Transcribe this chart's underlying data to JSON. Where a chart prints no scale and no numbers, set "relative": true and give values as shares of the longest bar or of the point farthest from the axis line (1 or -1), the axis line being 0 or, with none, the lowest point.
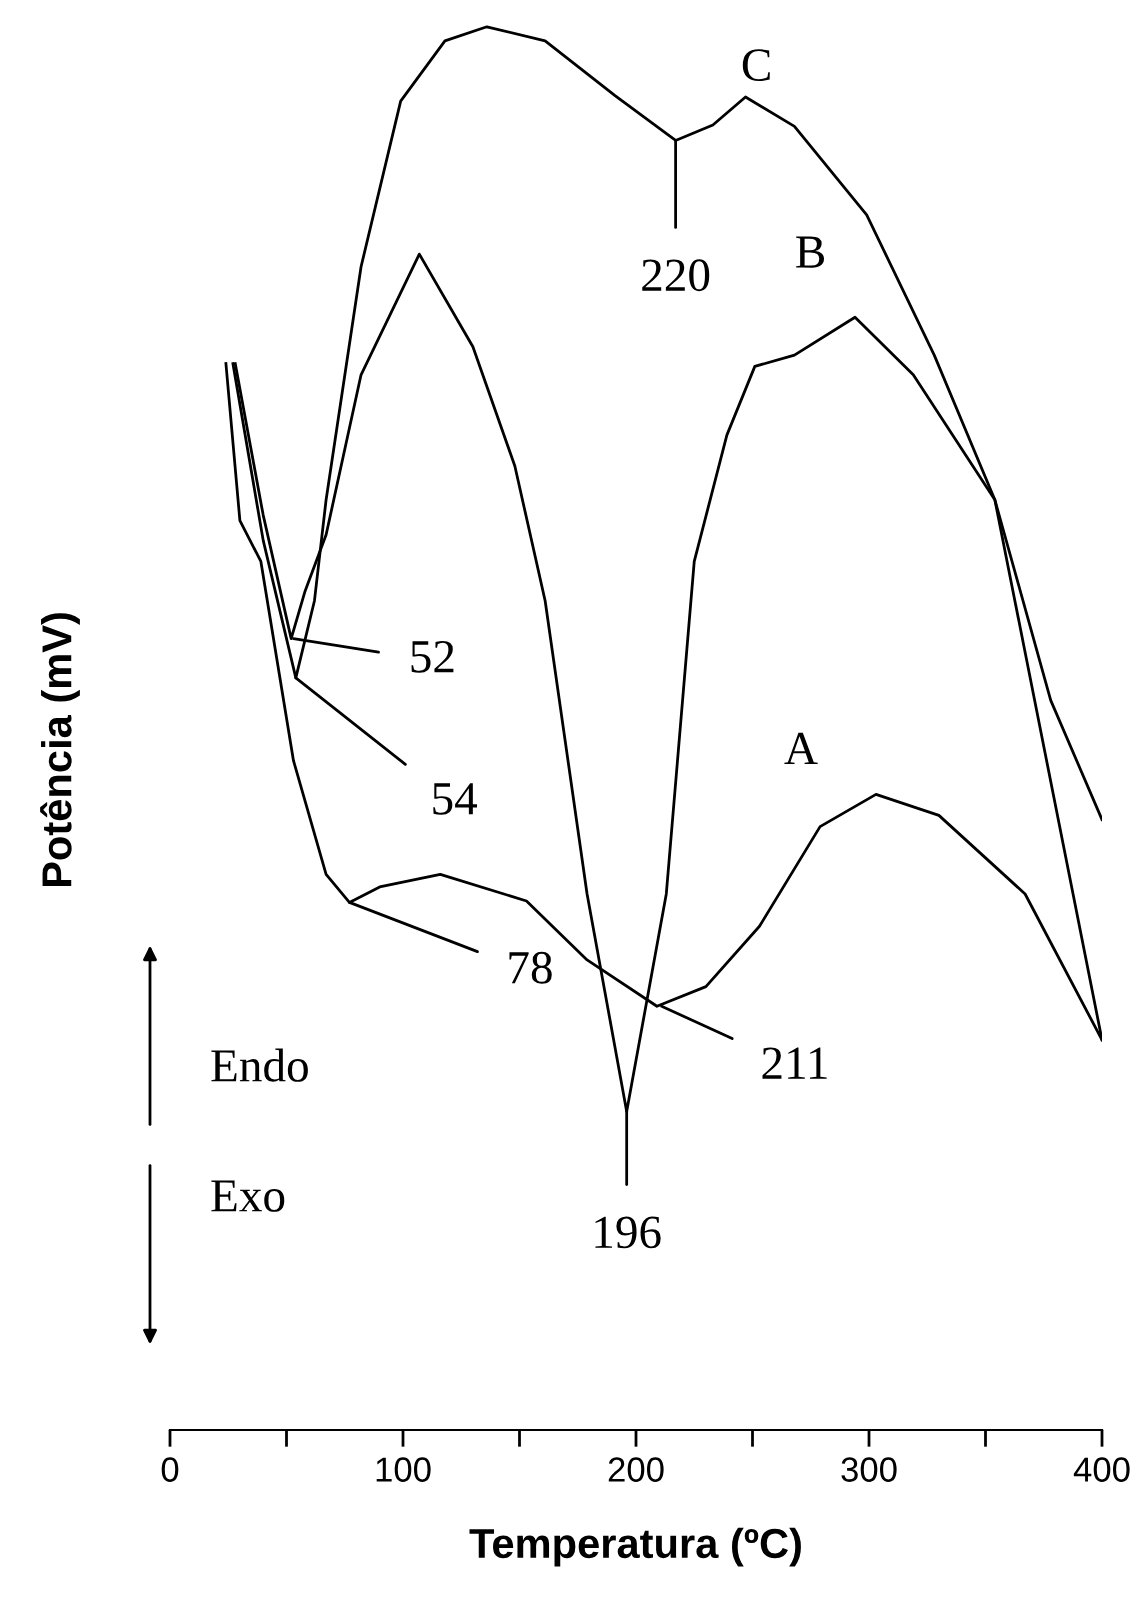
{
  "chart_data": {
    "type": "line",
    "relative": true,
    "xlabel": "Temperatura (ºC)",
    "ylabel": "Potência (mV)",
    "xlim": [
      0,
      400
    ],
    "xticks": [
      0,
      {
        "value": 50,
        "label": null
      },
      100,
      {
        "value": 150,
        "label": null
      },
      200,
      {
        "value": 250,
        "label": null
      },
      300,
      {
        "value": 350,
        "label": null
      },
      400
    ],
    "legend": false,
    "grid": false,
    "series": [
      {
        "name": "A",
        "color": "#000000",
        "x": [
          24,
          30,
          39,
          53,
          67,
          77,
          90,
          116,
          153,
          179,
          209,
          230,
          253,
          279,
          303,
          330,
          367,
          400
        ],
        "values": [
          0.76,
          0.648,
          0.619,
          0.477,
          0.396,
          0.376,
          0.387,
          0.396,
          0.377,
          0.335,
          0.302,
          0.316,
          0.359,
          0.43,
          0.453,
          0.438,
          0.382,
          0.278
        ]
      },
      {
        "name": "B",
        "color": "#000000",
        "x": [
          28,
          40,
          52,
          58,
          67,
          82,
          107,
          130,
          148,
          161,
          179,
          196,
          213,
          225,
          239,
          251,
          268,
          294,
          319,
          354,
          400
        ],
        "values": [
          0.76,
          0.652,
          0.564,
          0.598,
          0.638,
          0.752,
          0.838,
          0.772,
          0.687,
          0.591,
          0.382,
          0.227,
          0.382,
          0.619,
          0.709,
          0.758,
          0.766,
          0.793,
          0.752,
          0.663,
          0.278
        ]
      },
      {
        "name": "C",
        "color": "#000000",
        "x": [
          27,
          40,
          54,
          62,
          67,
          82,
          99,
          118,
          136,
          161,
          191,
          217,
          233,
          247,
          268,
          299,
          328,
          354,
          378,
          400
        ],
        "values": [
          0.76,
          0.634,
          0.536,
          0.591,
          0.663,
          0.829,
          0.947,
          0.99,
          1.0,
          0.99,
          0.951,
          0.919,
          0.93,
          0.95,
          0.929,
          0.866,
          0.766,
          0.663,
          0.52,
          0.435
        ]
      }
    ],
    "annotations": [
      {
        "text": "52",
        "x": 53,
        "y": 0.564
      },
      {
        "text": "54",
        "x": 54,
        "y": 0.536
      },
      {
        "text": "78",
        "x": 77,
        "y": 0.376
      },
      {
        "text": "211",
        "x": 211,
        "y": 0.302
      },
      {
        "text": "196",
        "x": 196,
        "y": 0.227
      },
      {
        "text": "220",
        "x": 217,
        "y": 0.919
      },
      "Endo",
      "Exo"
    ]
  }
}
